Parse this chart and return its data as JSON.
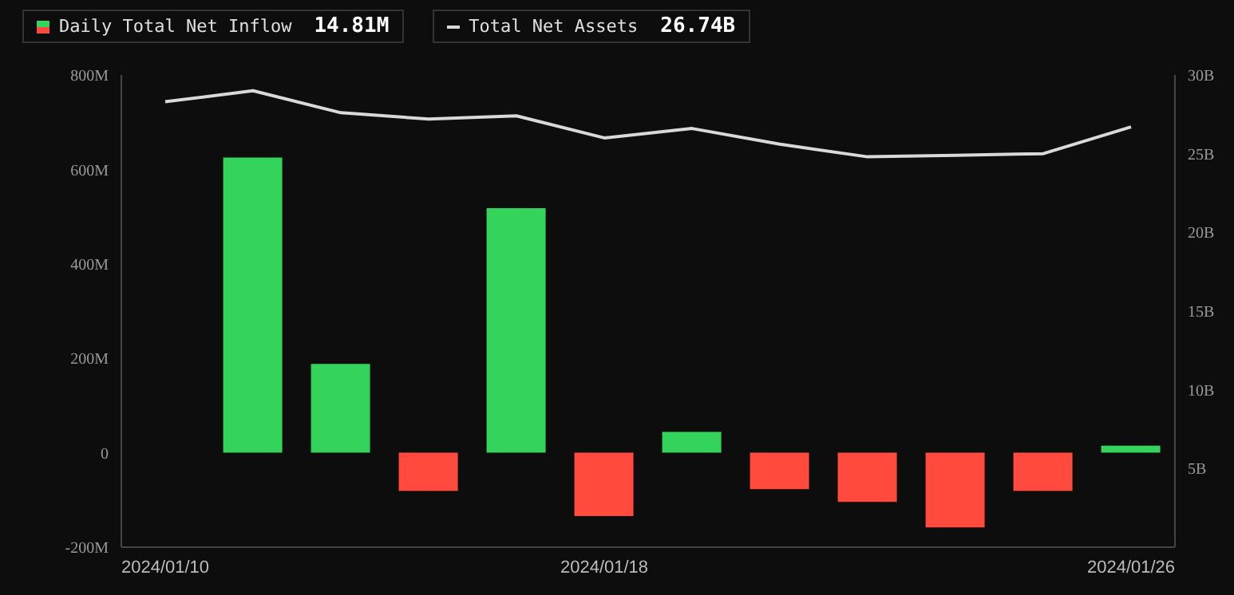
{
  "chart_data": {
    "type": "bar",
    "categories": [
      "2024/01/10",
      null,
      null,
      null,
      null,
      "2024/01/18",
      null,
      null,
      null,
      null,
      null,
      "2024/01/26"
    ],
    "series": [
      {
        "name": "Daily Total Net Inflow",
        "colors": [
          "#33d35c",
          "#33d35c",
          "#33d35c",
          "#ff4a3d",
          "#33d35c",
          "#ff4a3d",
          "#33d35c",
          "#ff4a3d",
          "#ff4a3d",
          "#ff4a3d",
          "#ff4a3d",
          "#33d35c"
        ],
        "values": [
          null,
          625,
          188,
          -81,
          518,
          -134,
          44,
          -77,
          -104,
          -158,
          -81,
          15
        ]
      },
      {
        "name": "Total Net Assets",
        "type": "line",
        "axis": "y2",
        "color": "#d9d9d9",
        "values": [
          28.3,
          29.0,
          27.6,
          27.2,
          27.4,
          26.0,
          26.6,
          25.6,
          24.8,
          24.9,
          25.0,
          26.7
        ]
      }
    ],
    "ylim": [
      -200,
      800
    ],
    "yticks": [
      {
        "value": -200,
        "label": "-200M"
      },
      0,
      {
        "value": 200,
        "label": "200M"
      },
      {
        "value": 400,
        "label": "400M"
      },
      {
        "value": 600,
        "label": "600M"
      },
      {
        "value": 800,
        "label": "800M"
      }
    ],
    "y2lim": [
      0,
      30
    ],
    "y2ticks": [
      {
        "value": 0,
        "label": null
      },
      {
        "value": 5,
        "label": "5B"
      },
      {
        "value": 10,
        "label": "10B"
      },
      {
        "value": 15,
        "label": "15B"
      },
      {
        "value": 20,
        "label": "20B"
      },
      {
        "value": 25,
        "label": "25B"
      },
      {
        "value": 30,
        "label": "30B"
      }
    ],
    "annotations": [
      "14.81M",
      "26.74B"
    ],
    "legend": "top left",
    "grid": false,
    "marker": "none",
    "line_style": "solid"
  }
}
